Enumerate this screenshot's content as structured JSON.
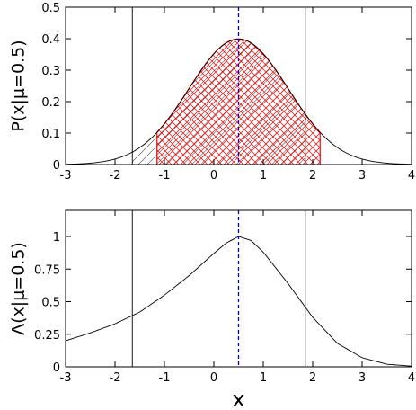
{
  "chart_data": [
    {
      "type": "line",
      "ylabel": "P(x|μ=0.5)",
      "xlabel": "",
      "xlim": [
        -3,
        4
      ],
      "ylim": [
        0,
        0.5
      ],
      "xticks": [
        -3,
        -2,
        -1,
        0,
        1,
        2,
        3,
        4
      ],
      "yticks": [
        0,
        0.1,
        0.2,
        0.3,
        0.4,
        0.5
      ],
      "xtick_labels": [
        "-3",
        "-2",
        "-1",
        "0",
        "1",
        "2",
        "3",
        "4"
      ],
      "ytick_labels": [
        "0",
        "0.1",
        "0.2",
        "0.3",
        "0.4",
        "0.5"
      ],
      "grid": false,
      "series": [
        {
          "color": "#000000",
          "x": [
            -3.0,
            -2.5,
            -2.0,
            -1.5,
            -1.0,
            -0.5,
            0.0,
            0.5,
            1.0,
            1.5,
            2.0,
            2.5,
            3.0,
            3.5,
            4.0
          ],
          "y": [
            0.0009,
            0.0044,
            0.0175,
            0.054,
            0.1295,
            0.242,
            0.352,
            0.399,
            0.352,
            0.242,
            0.1295,
            0.054,
            0.0175,
            0.0044,
            0.0009
          ]
        }
      ],
      "mean_line": {
        "x": 0.5,
        "color": "#0000cc"
      },
      "vertical_lines": [
        {
          "x": -1.65,
          "color": "#000000"
        },
        {
          "x": 1.85,
          "color": "#000000"
        }
      ],
      "shaded_regions": [
        {
          "from": -1.65,
          "to": 1.85,
          "color": "#000000",
          "pattern": "hatch"
        },
        {
          "from": -1.15,
          "to": 2.15,
          "color": "#ff0000",
          "pattern": "crosshatch"
        }
      ]
    },
    {
      "type": "line",
      "ylabel": "Λ(x|μ=0.5)",
      "xlabel": "x",
      "xlim": [
        -3,
        4
      ],
      "ylim": [
        0,
        1.2
      ],
      "xticks": [
        -3,
        -2,
        -1,
        0,
        1,
        2,
        3,
        4
      ],
      "yticks": [
        0,
        0.25,
        0.5,
        0.75,
        1
      ],
      "xtick_labels": [
        "-3",
        "-2",
        "-1",
        "0",
        "1",
        "2",
        "3",
        "4"
      ],
      "ytick_labels": [
        "0",
        "0.25",
        "0.5",
        "0.75",
        "1"
      ],
      "grid": false,
      "series": [
        {
          "color": "#000000",
          "x": [
            -3.0,
            -2.5,
            -2.0,
            -1.5,
            -1.0,
            -0.5,
            0.0,
            0.25,
            0.5,
            0.75,
            1.0,
            1.5,
            2.0,
            2.5,
            3.0,
            3.5,
            4.0
          ],
          "y": [
            0.2,
            0.26,
            0.33,
            0.42,
            0.55,
            0.7,
            0.87,
            0.95,
            1.0,
            0.97,
            0.88,
            0.64,
            0.38,
            0.18,
            0.07,
            0.02,
            0.005
          ]
        }
      ],
      "mean_line": {
        "x": 0.5,
        "color": "#0000cc"
      },
      "vertical_lines": [
        {
          "x": -1.65,
          "color": "#000000"
        },
        {
          "x": 1.85,
          "color": "#000000"
        }
      ]
    }
  ]
}
